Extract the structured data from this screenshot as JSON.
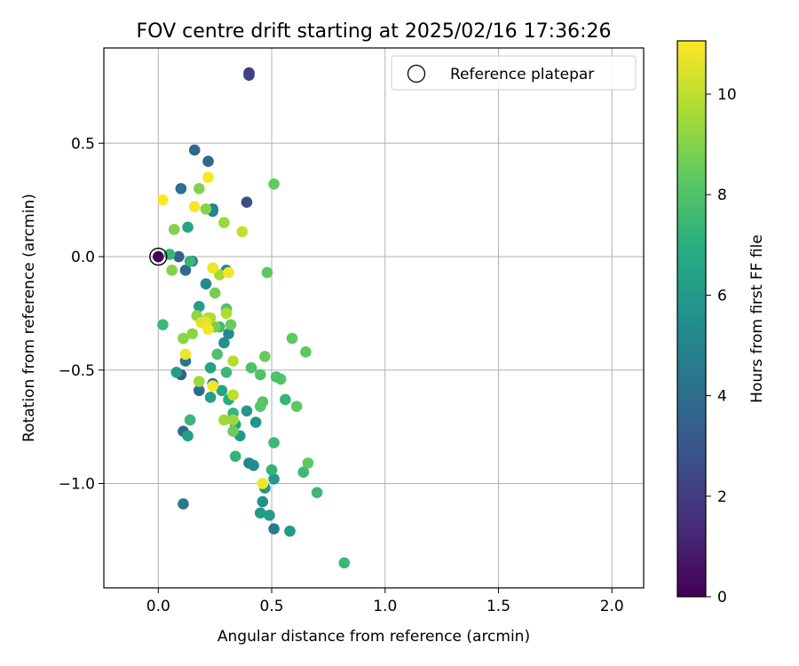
{
  "chart_data": {
    "type": "scatter",
    "title": "FOV centre drift starting at 2025/02/16 17:36:26",
    "xlabel": "Angular distance from reference (arcmin)",
    "ylabel": "Rotation from reference (arcmin)",
    "xlim": [
      -0.24,
      2.14
    ],
    "ylim": [
      -1.46,
      0.92
    ],
    "xticks": [
      0.0,
      0.5,
      1.0,
      1.5,
      2.0
    ],
    "xtick_labels": [
      "0.0",
      "0.5",
      "1.0",
      "1.5",
      "2.0"
    ],
    "yticks": [
      -1.0,
      -0.5,
      0.0,
      0.5
    ],
    "ytick_labels": [
      "−1.0",
      "−0.5",
      "0.0",
      "0.5"
    ],
    "grid": true,
    "legend": {
      "position": "upper right",
      "entries": [
        "Reference platepar"
      ]
    },
    "reference_point": {
      "x": 0.0,
      "y": 0.0
    },
    "colorbar": {
      "label": "Hours from first FF file",
      "colormap": "viridis",
      "range": [
        0,
        11.06
      ],
      "ticks": [
        0,
        2,
        4,
        6,
        8,
        10
      ],
      "tick_labels": [
        "0",
        "2",
        "4",
        "6",
        "8",
        "10"
      ]
    },
    "points": [
      {
        "x": 0.0,
        "y": 0.0,
        "c": 0.0
      },
      {
        "x": 0.4,
        "y": 0.81,
        "c": 2.1
      },
      {
        "x": 0.4,
        "y": 0.8,
        "c": 2.2
      },
      {
        "x": 0.39,
        "y": 0.24,
        "c": 2.6
      },
      {
        "x": 0.16,
        "y": 0.47,
        "c": 3.8
      },
      {
        "x": 0.22,
        "y": 0.42,
        "c": 3.7
      },
      {
        "x": 0.1,
        "y": 0.3,
        "c": 4.0
      },
      {
        "x": 0.24,
        "y": 0.21,
        "c": 4.4
      },
      {
        "x": 0.24,
        "y": 0.2,
        "c": 5.0
      },
      {
        "x": 0.09,
        "y": 0.0,
        "c": 3.5
      },
      {
        "x": 0.12,
        "y": -0.06,
        "c": 3.9
      },
      {
        "x": 0.15,
        "y": -0.02,
        "c": 4.6
      },
      {
        "x": 0.1,
        "y": -0.52,
        "c": 3.4
      },
      {
        "x": 0.18,
        "y": -0.59,
        "c": 3.9
      },
      {
        "x": 0.12,
        "y": -0.46,
        "c": 4.5
      },
      {
        "x": 0.11,
        "y": -0.77,
        "c": 3.8
      },
      {
        "x": 0.11,
        "y": -1.09,
        "c": 4.6
      },
      {
        "x": 0.51,
        "y": -1.2,
        "c": 4.6
      },
      {
        "x": 0.24,
        "y": -0.56,
        "c": 4.2
      },
      {
        "x": 0.3,
        "y": -0.06,
        "c": 5.0
      },
      {
        "x": 0.21,
        "y": -0.12,
        "c": 5.2
      },
      {
        "x": 0.29,
        "y": -0.38,
        "c": 5.5
      },
      {
        "x": 0.31,
        "y": -0.34,
        "c": 5.3
      },
      {
        "x": 0.4,
        "y": -0.91,
        "c": 5.0
      },
      {
        "x": 0.42,
        "y": -0.92,
        "c": 5.4
      },
      {
        "x": 0.46,
        "y": -1.08,
        "c": 5.6
      },
      {
        "x": 0.45,
        "y": -1.13,
        "c": 6.0
      },
      {
        "x": 0.49,
        "y": -1.14,
        "c": 6.1
      },
      {
        "x": 0.58,
        "y": -1.21,
        "c": 6.1
      },
      {
        "x": 0.47,
        "y": -1.02,
        "c": 5.8
      },
      {
        "x": 0.51,
        "y": -0.98,
        "c": 6.0
      },
      {
        "x": 0.43,
        "y": -0.73,
        "c": 5.7
      },
      {
        "x": 0.39,
        "y": -0.68,
        "c": 5.9
      },
      {
        "x": 0.36,
        "y": -0.79,
        "c": 6.0
      },
      {
        "x": 0.34,
        "y": -0.74,
        "c": 6.2
      },
      {
        "x": 0.23,
        "y": -0.62,
        "c": 6.1
      },
      {
        "x": 0.18,
        "y": -0.22,
        "c": 6.1
      },
      {
        "x": 0.13,
        "y": 0.13,
        "c": 6.6
      },
      {
        "x": 0.13,
        "y": -0.79,
        "c": 6.2
      },
      {
        "x": 0.08,
        "y": -0.51,
        "c": 6.2
      },
      {
        "x": 0.23,
        "y": -0.49,
        "c": 6.4
      },
      {
        "x": 0.28,
        "y": -0.59,
        "c": 6.5
      },
      {
        "x": 0.31,
        "y": -0.63,
        "c": 6.8
      },
      {
        "x": 0.33,
        "y": -0.69,
        "c": 7.2
      },
      {
        "x": 0.34,
        "y": -0.88,
        "c": 7.2
      },
      {
        "x": 0.5,
        "y": -0.94,
        "c": 7.2
      },
      {
        "x": 0.56,
        "y": -0.63,
        "c": 7.3
      },
      {
        "x": 0.14,
        "y": -0.72,
        "c": 7.4
      },
      {
        "x": 0.14,
        "y": -0.02,
        "c": 7.4
      },
      {
        "x": 0.05,
        "y": 0.01,
        "c": 7.3
      },
      {
        "x": 0.02,
        "y": -0.3,
        "c": 7.5
      },
      {
        "x": 0.82,
        "y": -1.35,
        "c": 7.4
      },
      {
        "x": 0.7,
        "y": -1.04,
        "c": 7.5
      },
      {
        "x": 0.64,
        "y": -0.95,
        "c": 7.5
      },
      {
        "x": 0.51,
        "y": -0.82,
        "c": 7.5
      },
      {
        "x": 0.3,
        "y": -0.51,
        "c": 7.5
      },
      {
        "x": 0.26,
        "y": -0.43,
        "c": 7.9
      },
      {
        "x": 0.27,
        "y": -0.31,
        "c": 7.6
      },
      {
        "x": 0.3,
        "y": -0.23,
        "c": 8.0
      },
      {
        "x": 0.41,
        "y": -0.49,
        "c": 7.9
      },
      {
        "x": 0.45,
        "y": -0.52,
        "c": 8.0
      },
      {
        "x": 0.46,
        "y": -0.64,
        "c": 8.1
      },
      {
        "x": 0.45,
        "y": -0.66,
        "c": 8.2
      },
      {
        "x": 0.54,
        "y": -0.54,
        "c": 8.1
      },
      {
        "x": 0.52,
        "y": -0.53,
        "c": 7.9
      },
      {
        "x": 0.61,
        "y": -0.66,
        "c": 8.3
      },
      {
        "x": 0.66,
        "y": -0.91,
        "c": 8.3
      },
      {
        "x": 0.59,
        "y": -0.36,
        "c": 8.3
      },
      {
        "x": 0.65,
        "y": -0.42,
        "c": 8.3
      },
      {
        "x": 0.48,
        "y": -0.07,
        "c": 8.3
      },
      {
        "x": 0.51,
        "y": 0.32,
        "c": 8.4
      },
      {
        "x": 0.47,
        "y": -0.44,
        "c": 8.5
      },
      {
        "x": 0.33,
        "y": -0.77,
        "c": 8.6
      },
      {
        "x": 0.32,
        "y": -0.3,
        "c": 8.5
      },
      {
        "x": 0.25,
        "y": -0.16,
        "c": 8.7
      },
      {
        "x": 0.25,
        "y": -0.31,
        "c": 8.8
      },
      {
        "x": 0.21,
        "y": 0.21,
        "c": 9.0
      },
      {
        "x": 0.18,
        "y": 0.3,
        "c": 9.0
      },
      {
        "x": 0.07,
        "y": 0.12,
        "c": 9.0
      },
      {
        "x": 0.06,
        "y": -0.06,
        "c": 9.0
      },
      {
        "x": 0.11,
        "y": -0.36,
        "c": 9.1
      },
      {
        "x": 0.15,
        "y": -0.34,
        "c": 9.1
      },
      {
        "x": 0.17,
        "y": -0.26,
        "c": 9.2
      },
      {
        "x": 0.18,
        "y": -0.55,
        "c": 9.4
      },
      {
        "x": 0.29,
        "y": -0.72,
        "c": 9.5
      },
      {
        "x": 0.33,
        "y": -0.72,
        "c": 9.4
      },
      {
        "x": 0.29,
        "y": 0.15,
        "c": 9.4
      },
      {
        "x": 0.27,
        "y": -0.08,
        "c": 9.6
      },
      {
        "x": 0.3,
        "y": -0.25,
        "c": 9.7
      },
      {
        "x": 0.22,
        "y": -0.27,
        "c": 9.6
      },
      {
        "x": 0.23,
        "y": -0.27,
        "c": 9.8
      },
      {
        "x": 0.33,
        "y": -0.46,
        "c": 9.8
      },
      {
        "x": 0.33,
        "y": -0.61,
        "c": 10.0
      },
      {
        "x": 0.37,
        "y": 0.11,
        "c": 10.1
      },
      {
        "x": 0.19,
        "y": -0.29,
        "c": 10.6
      },
      {
        "x": 0.21,
        "y": -0.29,
        "c": 10.7
      },
      {
        "x": 0.22,
        "y": -0.32,
        "c": 10.9
      },
      {
        "x": 0.12,
        "y": -0.43,
        "c": 10.8
      },
      {
        "x": 0.24,
        "y": -0.57,
        "c": 10.9
      },
      {
        "x": 0.24,
        "y": -0.05,
        "c": 10.8
      },
      {
        "x": 0.31,
        "y": -0.07,
        "c": 10.9
      },
      {
        "x": 0.16,
        "y": 0.22,
        "c": 10.9
      },
      {
        "x": 0.22,
        "y": 0.35,
        "c": 11.0
      },
      {
        "x": 0.02,
        "y": 0.25,
        "c": 11.0
      },
      {
        "x": 0.46,
        "y": -1.0,
        "c": 10.8
      }
    ]
  }
}
